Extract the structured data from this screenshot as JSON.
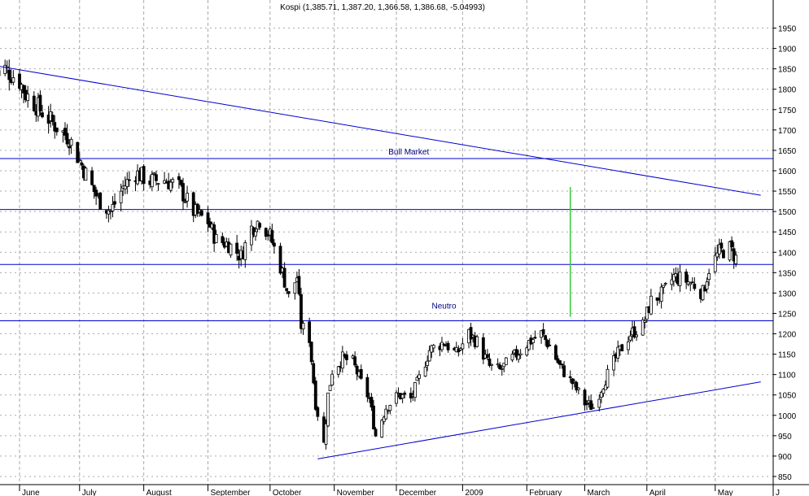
{
  "chart_data": {
    "type": "candlestick",
    "title": "Kospi (1,385.71, 1,387.20, 1,366.58, 1,386.68, -5.04993)",
    "ylim": [
      830,
      1975
    ],
    "y_ticks": [
      850,
      900,
      950,
      1000,
      1050,
      1100,
      1150,
      1200,
      1250,
      1300,
      1350,
      1400,
      1450,
      1500,
      1550,
      1600,
      1650,
      1700,
      1750,
      1800,
      1850,
      1900,
      1950
    ],
    "x_ticks": [
      "June",
      "July",
      "August",
      "September",
      "October",
      "November",
      "December",
      "2009",
      "February",
      "March",
      "April",
      "May",
      "J"
    ],
    "grid": true,
    "horizontal_lines": [
      1630,
      1505,
      1370,
      1232
    ],
    "trend_lines": [
      {
        "from": [
          "2008-05-21",
          1858
        ],
        "to": [
          "2009-05-26",
          1540
        ]
      },
      {
        "from": [
          "2008-10-24",
          893
        ],
        "to": [
          "2009-05-26",
          1082
        ]
      }
    ],
    "vertical_marker": {
      "date": "2009-02-23",
      "from": 1242,
      "to": 1560,
      "color": "#33cc33"
    },
    "annotations": [
      {
        "text": "Bull Market",
        "date": "2008-12-07",
        "value": 1640
      },
      {
        "text": "Neutro",
        "date": "2008-12-24",
        "value": 1262
      }
    ],
    "colors": {
      "lines": "#0000cc",
      "marker": "#33cc33",
      "candles": "#000000",
      "grid": "#aaaaaa"
    },
    "waypoints": [
      [
        "2008-05-21",
        1835
      ],
      [
        "2008-05-26",
        1850
      ],
      [
        "2008-06-02",
        1820
      ],
      [
        "2008-06-05",
        1788
      ],
      [
        "2008-06-12",
        1750
      ],
      [
        "2008-06-19",
        1712
      ],
      [
        "2008-06-26",
        1680
      ],
      [
        "2008-07-01",
        1625
      ],
      [
        "2008-07-07",
        1560
      ],
      [
        "2008-07-10",
        1530
      ],
      [
        "2008-07-16",
        1500
      ],
      [
        "2008-07-22",
        1560
      ],
      [
        "2008-07-28",
        1595
      ],
      [
        "2008-08-04",
        1575
      ],
      [
        "2008-08-11",
        1578
      ],
      [
        "2008-08-18",
        1560
      ],
      [
        "2008-08-25",
        1500
      ],
      [
        "2008-09-01",
        1475
      ],
      [
        "2008-09-05",
        1430
      ],
      [
        "2008-09-11",
        1420
      ],
      [
        "2008-09-17",
        1390
      ],
      [
        "2008-09-22",
        1460
      ],
      [
        "2008-09-26",
        1480
      ],
      [
        "2008-10-01",
        1440
      ],
      [
        "2008-10-07",
        1350
      ],
      [
        "2008-10-10",
        1290
      ],
      [
        "2008-10-14",
        1340
      ],
      [
        "2008-10-16",
        1220
      ],
      [
        "2008-10-20",
        1190
      ],
      [
        "2008-10-23",
        1030
      ],
      [
        "2008-10-27",
        930
      ],
      [
        "2008-10-29",
        1050
      ],
      [
        "2008-10-31",
        1110
      ],
      [
        "2008-11-05",
        1140
      ],
      [
        "2008-11-10",
        1130
      ],
      [
        "2008-11-14",
        1080
      ],
      [
        "2008-11-18",
        1040
      ],
      [
        "2008-11-21",
        950
      ],
      [
        "2008-11-26",
        1020
      ],
      [
        "2008-12-02",
        1050
      ],
      [
        "2008-12-08",
        1040
      ],
      [
        "2008-12-12",
        1090
      ],
      [
        "2008-12-17",
        1160
      ],
      [
        "2008-12-24",
        1180
      ],
      [
        "2008-12-30",
        1150
      ],
      [
        "2009-01-05",
        1200
      ],
      [
        "2009-01-09",
        1180
      ],
      [
        "2009-01-15",
        1120
      ],
      [
        "2009-01-20",
        1110
      ],
      [
        "2009-01-28",
        1150
      ],
      [
        "2009-02-03",
        1180
      ],
      [
        "2009-02-09",
        1200
      ],
      [
        "2009-02-13",
        1170
      ],
      [
        "2009-02-18",
        1120
      ],
      [
        "2009-02-24",
        1080
      ],
      [
        "2009-03-02",
        1030
      ],
      [
        "2009-03-06",
        1020
      ],
      [
        "2009-03-12",
        1090
      ],
      [
        "2009-03-18",
        1150
      ],
      [
        "2009-03-24",
        1200
      ],
      [
        "2009-03-30",
        1220
      ],
      [
        "2009-04-03",
        1280
      ],
      [
        "2009-04-09",
        1300
      ],
      [
        "2009-04-14",
        1340
      ],
      [
        "2009-04-20",
        1330
      ],
      [
        "2009-04-24",
        1320
      ],
      [
        "2009-04-28",
        1300
      ],
      [
        "2009-05-01",
        1360
      ],
      [
        "2009-05-06",
        1400
      ],
      [
        "2009-05-11",
        1410
      ],
      [
        "2009-05-14",
        1386
      ]
    ]
  }
}
